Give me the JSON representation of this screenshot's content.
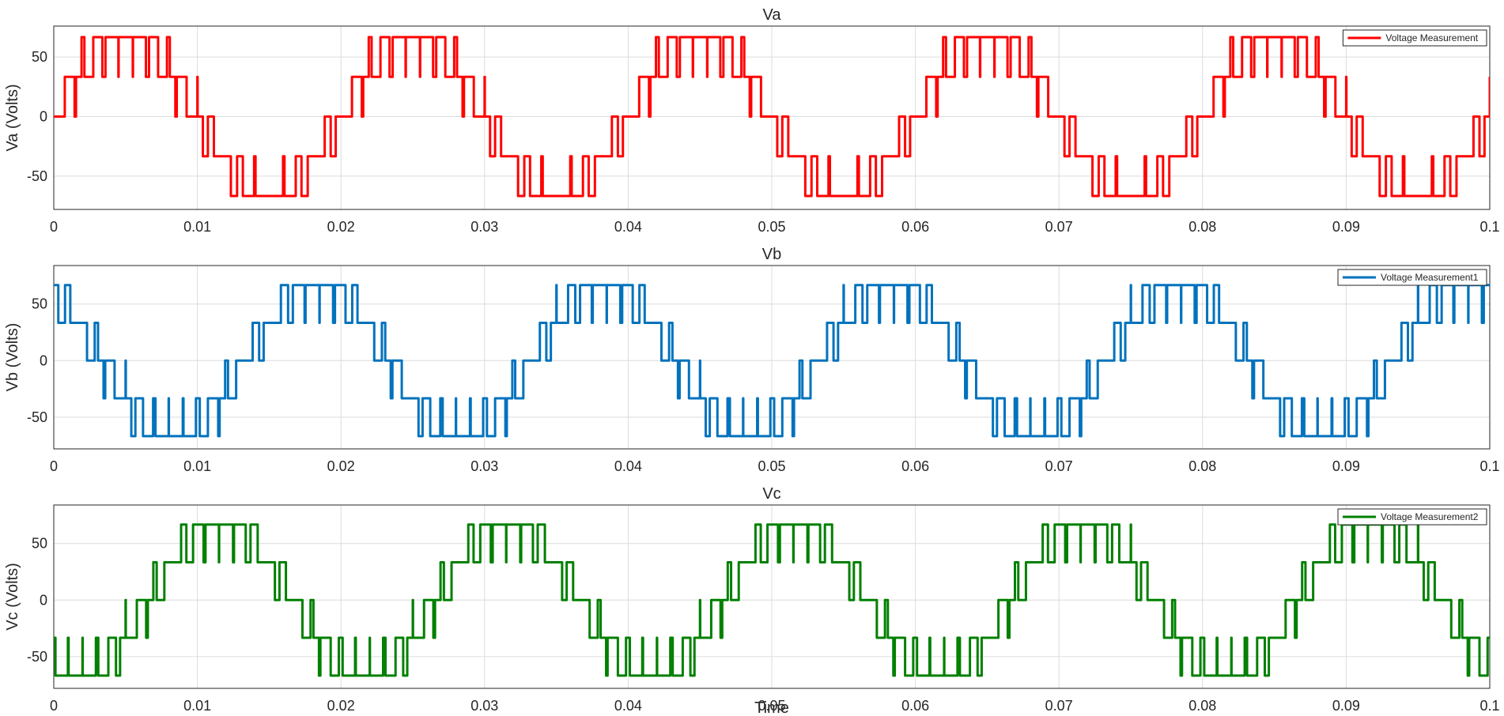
{
  "chart_data": [
    {
      "type": "line",
      "title": "Va",
      "ylabel": "Va (Volts)",
      "xlabel": "",
      "xlim": [
        0,
        0.1
      ],
      "ylim": [
        -78,
        76
      ],
      "xticks": [
        "0",
        "0.01",
        "0.02",
        "0.03",
        "0.04",
        "0.05",
        "0.06",
        "0.07",
        "0.08",
        "0.09",
        "0.1"
      ],
      "yticks": [
        "50",
        "0",
        "-50"
      ],
      "ytick_values": [
        50,
        0,
        -50
      ],
      "grid": true,
      "legend": "top-right",
      "series": [
        {
          "name": "Voltage Measurement",
          "color": "#ff0000",
          "frequency_hz": 50,
          "phase_deg": 0,
          "amplitude": 66.7,
          "levels": [
            -66.7,
            -33.3,
            0,
            33.3,
            66.7
          ],
          "carrier_hz": 1000
        }
      ]
    },
    {
      "type": "line",
      "title": "Vb",
      "ylabel": "Vb (Volts)",
      "xlabel": "",
      "xlim": [
        0,
        0.1
      ],
      "ylim": [
        -78,
        84
      ],
      "xticks": [
        "0",
        "0.01",
        "0.02",
        "0.03",
        "0.04",
        "0.05",
        "0.06",
        "0.07",
        "0.08",
        "0.09",
        "0.1"
      ],
      "yticks": [
        "50",
        "0",
        "-50"
      ],
      "ytick_values": [
        50,
        0,
        -50
      ],
      "grid": true,
      "legend": "top-right",
      "series": [
        {
          "name": "Voltage Measurement1",
          "color": "#0072bd",
          "frequency_hz": 50,
          "phase_deg": 120,
          "amplitude": 66.7,
          "levels": [
            -66.7,
            -33.3,
            0,
            33.3,
            66.7
          ],
          "carrier_hz": 1000
        }
      ]
    },
    {
      "type": "line",
      "title": "Vc",
      "ylabel": "Vc (Volts)",
      "xlabel": "Time",
      "xlim": [
        0,
        0.1
      ],
      "ylim": [
        -78,
        84
      ],
      "xticks": [
        "0",
        "0.01",
        "0.02",
        "0.03",
        "0.04",
        "0.05",
        "0.06",
        "0.07",
        "0.08",
        "0.09",
        "0.1"
      ],
      "yticks": [
        "50",
        "0",
        "-50"
      ],
      "ytick_values": [
        50,
        0,
        -50
      ],
      "grid": true,
      "legend": "top-right",
      "series": [
        {
          "name": "Voltage Measurement2",
          "color": "#008000",
          "frequency_hz": 50,
          "phase_deg": -120,
          "amplitude": 66.7,
          "levels": [
            -66.7,
            -33.3,
            0,
            33.3,
            66.7
          ],
          "carrier_hz": 1000
        }
      ]
    }
  ]
}
